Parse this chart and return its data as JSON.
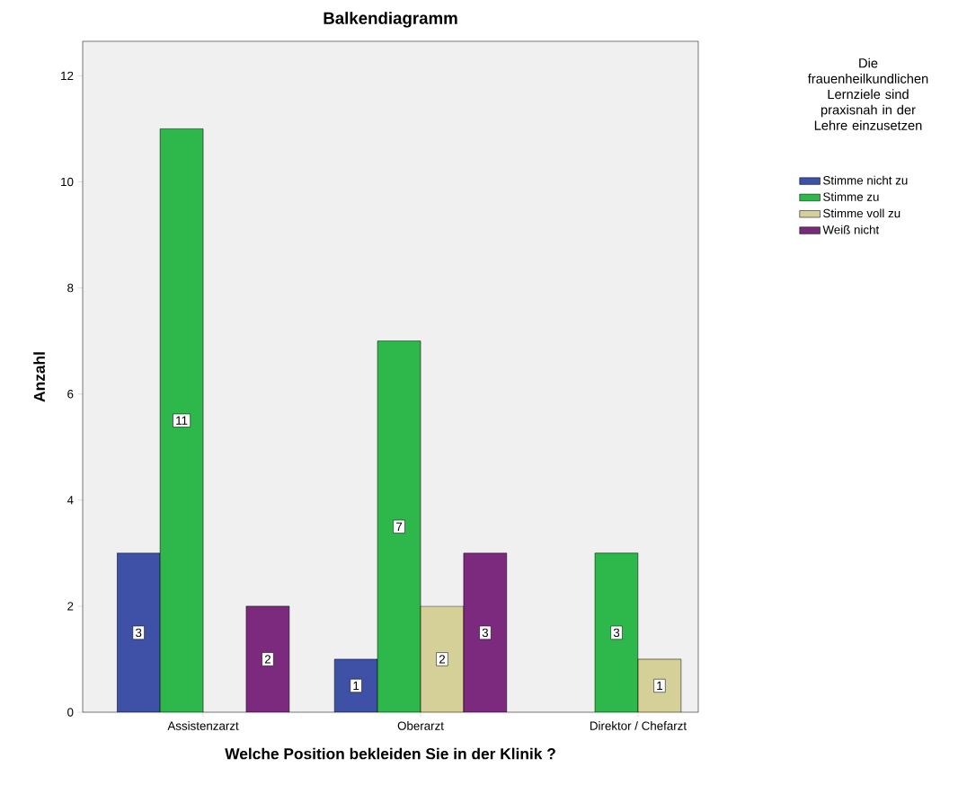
{
  "chart_data": {
    "type": "bar",
    "title": "Balkendiagramm",
    "xlabel": "Welche Position bekleiden Sie in der Klinik ?",
    "ylabel": "Anzahl",
    "legend_title": "Die frauenheilkundlichen Lernziele sind praxisnah in der Lehre einzusetzen",
    "categories": [
      "Assistenzarzt",
      "Oberarzt",
      "Direktor / Chefarzt"
    ],
    "series": [
      {
        "name": "Stimme nicht zu",
        "color": "#3f51a6",
        "values": [
          3,
          1,
          null
        ]
      },
      {
        "name": "Stimme zu",
        "color": "#2eb84b",
        "values": [
          11,
          7,
          3
        ]
      },
      {
        "name": "Stimme voll zu",
        "color": "#d5cf98",
        "values": [
          null,
          2,
          1
        ]
      },
      {
        "name": "Weiß nicht",
        "color": "#7b2a7d",
        "values": [
          2,
          3,
          null
        ]
      }
    ],
    "ylim": [
      0,
      12.65
    ],
    "yticks": [
      0,
      2,
      4,
      6,
      8,
      10,
      12
    ],
    "data_labels": true,
    "legend": "right",
    "grid": false
  }
}
